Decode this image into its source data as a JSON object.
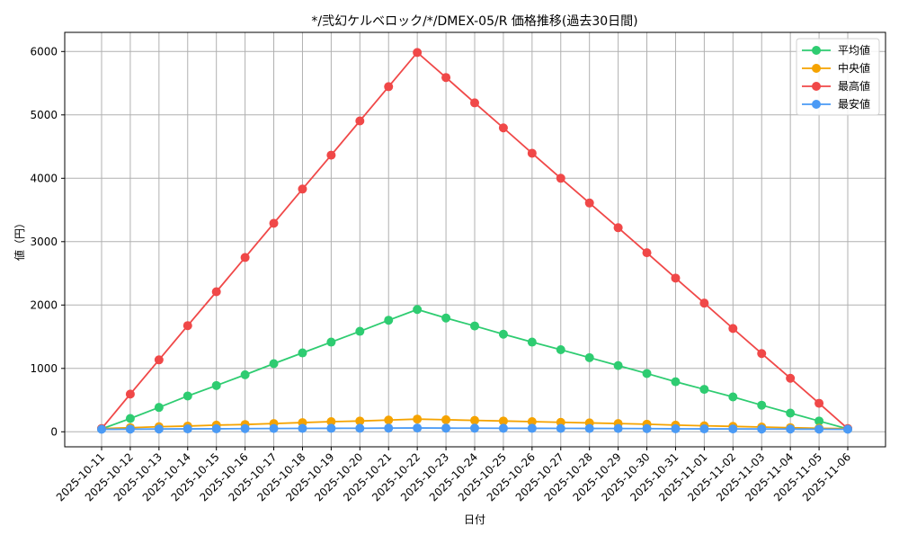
{
  "chart_data": {
    "type": "line",
    "title": "*/弐幻ケルベロック/*/DMEX-05/R 価格推移(過去30日間)",
    "xlabel": "日付",
    "ylabel": "値（円）",
    "ylim": [
      -240,
      6280
    ],
    "yticks": [
      0,
      1000,
      2000,
      3000,
      4000,
      5000,
      6000
    ],
    "grid": true,
    "legend_position": "upper right",
    "categories": [
      "2025-10-11",
      "2025-10-12",
      "2025-10-13",
      "2025-10-14",
      "2025-10-15",
      "2025-10-16",
      "2025-10-17",
      "2025-10-18",
      "2025-10-19",
      "2025-10-20",
      "2025-10-21",
      "2025-10-22",
      "2025-10-23",
      "2025-10-24",
      "2025-10-25",
      "2025-10-26",
      "2025-10-27",
      "2025-10-28",
      "2025-10-29",
      "2025-10-30",
      "2025-10-31",
      "2025-11-01",
      "2025-11-02",
      "2025-11-03",
      "2025-11-04",
      "2025-11-05",
      "2025-11-06"
    ],
    "series": [
      {
        "name": "平均値",
        "color": "#2ecc71",
        "values": [
          45,
          210,
          385,
          565,
          730,
          900,
          1075,
          1245,
          1415,
          1585,
          1760,
          1930,
          1795,
          1670,
          1540,
          1415,
          1295,
          1170,
          1045,
          920,
          790,
          670,
          550,
          420,
          295,
          170,
          45
        ]
      },
      {
        "name": "中央値",
        "color": "#f5a300",
        "values": [
          50,
          65,
          80,
          90,
          105,
          115,
          130,
          145,
          160,
          170,
          185,
          200,
          190,
          180,
          170,
          160,
          150,
          140,
          130,
          120,
          105,
          95,
          85,
          75,
          65,
          55,
          50
        ]
      },
      {
        "name": "最高値",
        "color": "#f04848",
        "values": [
          50,
          595,
          1135,
          1675,
          2210,
          2750,
          3290,
          3830,
          4365,
          4905,
          5445,
          5985,
          5590,
          5190,
          4795,
          4395,
          4000,
          3610,
          3220,
          2825,
          2425,
          2030,
          1630,
          1235,
          845,
          450,
          50
        ]
      },
      {
        "name": "最安値",
        "color": "#4a9af5",
        "values": [
          40,
          42,
          44,
          46,
          48,
          50,
          52,
          54,
          55,
          56,
          58,
          60,
          58,
          57,
          56,
          55,
          54,
          53,
          52,
          50,
          48,
          46,
          45,
          44,
          43,
          42,
          40
        ]
      }
    ]
  }
}
